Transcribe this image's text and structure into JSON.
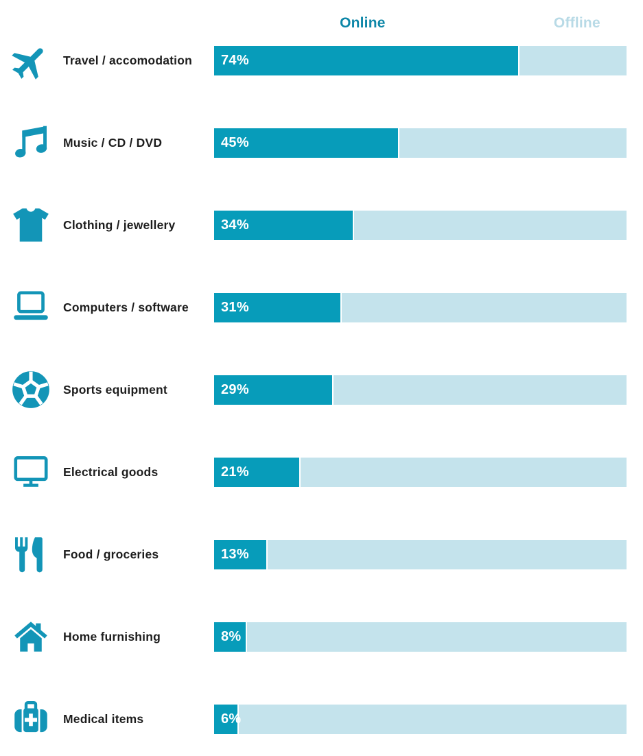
{
  "header": {
    "online_label": "Online",
    "offline_label": "Offline"
  },
  "colors": {
    "online": "#079cba",
    "offline": "#c4e3ec",
    "online_header": "#0e87a8",
    "offline_header": "#b8dae6",
    "icon": "#1395b7",
    "label_text": "#1d1d1d",
    "value_text": "#ffffff"
  },
  "rows": [
    {
      "label": "Travel / accomodation",
      "icon": "airplane-icon",
      "value": 74,
      "value_label": "74%"
    },
    {
      "label": "Music / CD / DVD",
      "icon": "music-note-icon",
      "value": 45,
      "value_label": "45%"
    },
    {
      "label": "Clothing / jewellery",
      "icon": "tshirt-icon",
      "value": 34,
      "value_label": "34%"
    },
    {
      "label": "Computers / software",
      "icon": "laptop-icon",
      "value": 31,
      "value_label": "31%"
    },
    {
      "label": "Sports equipment",
      "icon": "soccer-ball-icon",
      "value": 29,
      "value_label": "29%"
    },
    {
      "label": "Electrical goods",
      "icon": "monitor-icon",
      "value": 21,
      "value_label": "21%"
    },
    {
      "label": "Food / groceries",
      "icon": "cutlery-icon",
      "value": 13,
      "value_label": "13%"
    },
    {
      "label": "Home furnishing",
      "icon": "house-icon",
      "value": 8,
      "value_label": "8%"
    },
    {
      "label": "Medical items",
      "icon": "medical-bag-icon",
      "value": 6,
      "value_label": "6%"
    }
  ],
  "chart_data": {
    "type": "bar",
    "orientation": "horizontal",
    "title": "",
    "categories": [
      "Travel / accomodation",
      "Music / CD / DVD",
      "Clothing / jewellery",
      "Computers / software",
      "Sports equipment",
      "Electrical goods",
      "Food / groceries",
      "Home furnishing",
      "Medical items"
    ],
    "series": [
      {
        "name": "Online",
        "values": [
          74,
          45,
          34,
          31,
          29,
          21,
          13,
          8,
          6
        ]
      },
      {
        "name": "Offline",
        "values": [
          26,
          55,
          66,
          69,
          71,
          79,
          87,
          92,
          94
        ]
      }
    ],
    "value_suffix": "%",
    "xlim": [
      0,
      100
    ],
    "stacked": true,
    "grid": false,
    "legend_position": "top",
    "data_labels": "online-values-only"
  }
}
